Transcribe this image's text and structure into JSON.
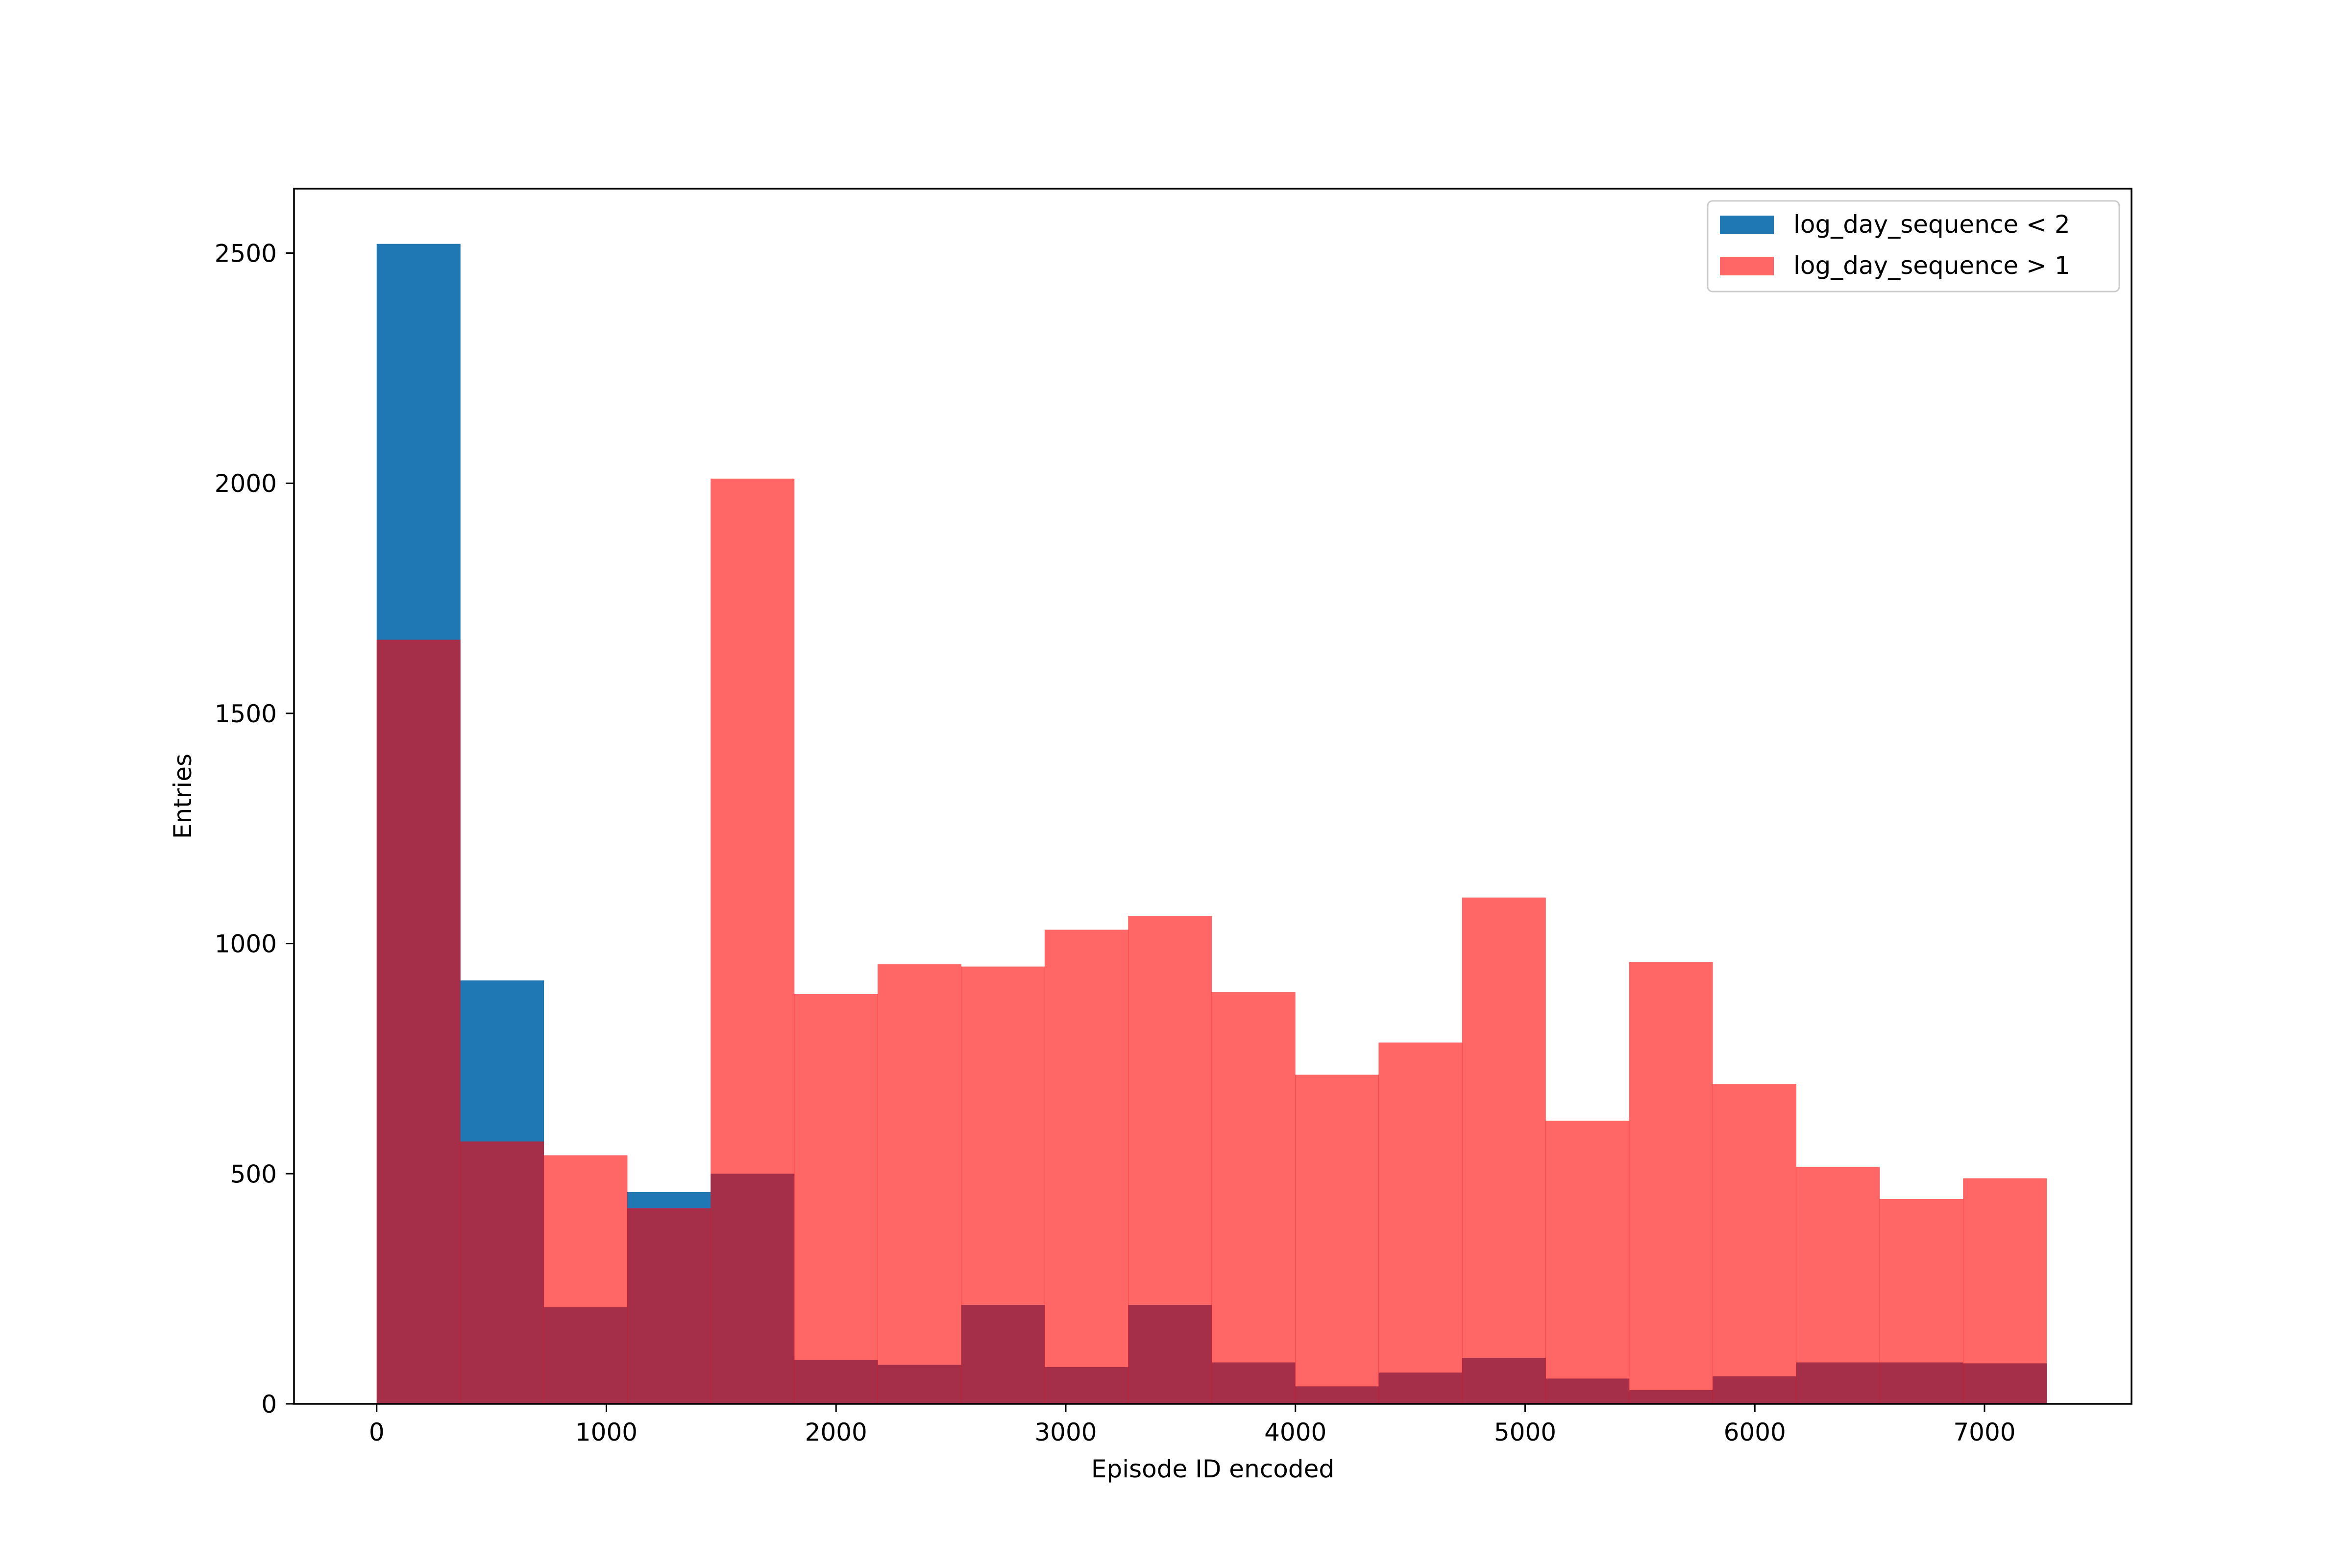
{
  "chart_data": {
    "type": "bar",
    "subtype": "histogram-overlay",
    "xlabel": "Episode ID encoded",
    "ylabel": "Entries",
    "xlim": [
      -360,
      7640
    ],
    "ylim": [
      0,
      2640
    ],
    "xticks": [
      0,
      1000,
      2000,
      3000,
      4000,
      5000,
      6000,
      7000
    ],
    "yticks": [
      0,
      500,
      1000,
      1500,
      2000,
      2500
    ],
    "grid": false,
    "legend_position": "top-right",
    "bin_edges": [
      0,
      363.5,
      727,
      1090.5,
      1454,
      1817.5,
      2181,
      2544.5,
      2908,
      3271.5,
      3635,
      3998.5,
      4362,
      4725.5,
      5089,
      5452.5,
      5816,
      6179.5,
      6543,
      6906.5,
      7270
    ],
    "series": [
      {
        "name": "log_day_sequence < 2",
        "color": "#1f77b4",
        "opacity": 1.0,
        "values": [
          2520,
          920,
          210,
          460,
          500,
          95,
          85,
          215,
          80,
          215,
          90,
          38,
          68,
          100,
          55,
          30,
          60,
          90,
          90,
          88
        ]
      },
      {
        "name": "log_day_sequence > 1",
        "color": "#ff0000",
        "opacity": 0.6,
        "values": [
          1660,
          570,
          540,
          425,
          2010,
          890,
          955,
          950,
          1030,
          1060,
          895,
          715,
          785,
          1100,
          615,
          960,
          695,
          515,
          445,
          490
        ]
      }
    ]
  }
}
